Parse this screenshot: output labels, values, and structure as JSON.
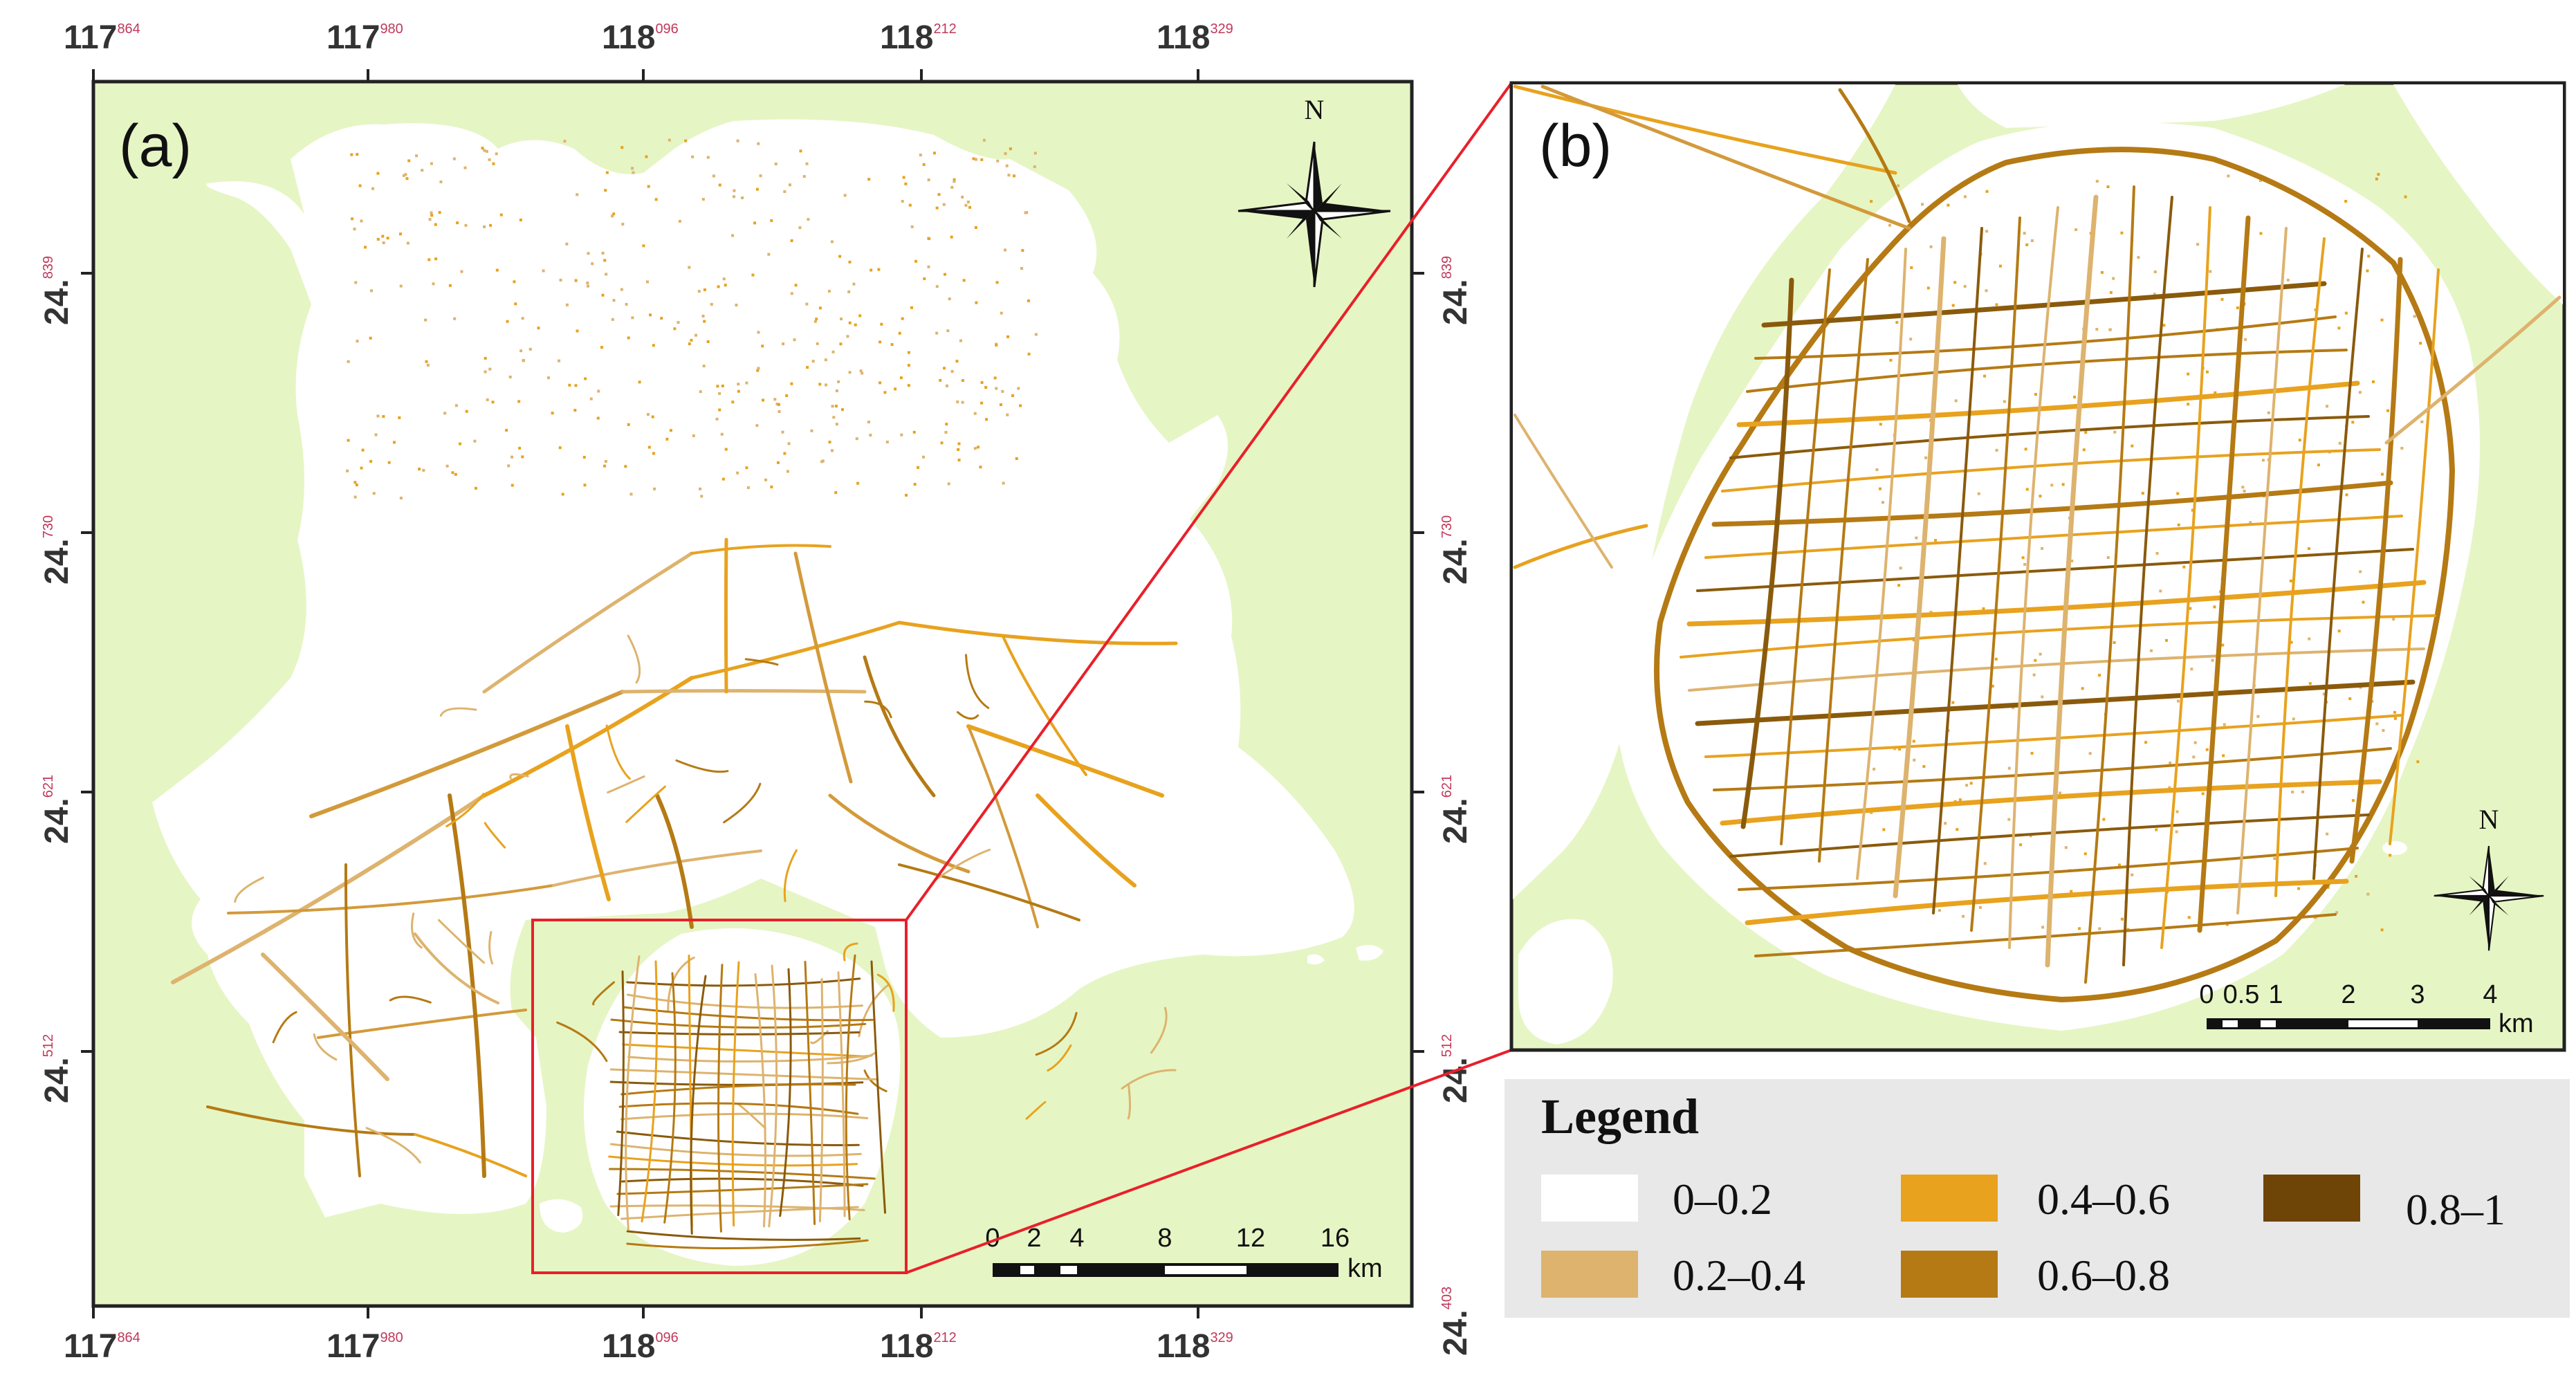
{
  "panels": {
    "a_label": "(a)",
    "b_label": "(b)"
  },
  "coords": {
    "x_labels": [
      {
        "deg": "117",
        "min": "864"
      },
      {
        "deg": "117",
        "min": "980"
      },
      {
        "deg": "118",
        "min": "096"
      },
      {
        "deg": "118",
        "min": "212"
      },
      {
        "deg": "118",
        "min": "329"
      }
    ],
    "y_labels": [
      {
        "deg": "24.",
        "min": "839"
      },
      {
        "deg": "24.",
        "min": "730"
      },
      {
        "deg": "24.",
        "min": "621"
      },
      {
        "deg": "24.",
        "min": "512"
      },
      {
        "deg": "24.",
        "min": "403"
      }
    ]
  },
  "north": {
    "label": "N",
    "icon": "north-arrow-icon"
  },
  "scale_a": {
    "ticks": [
      "0",
      "2",
      "4",
      "8",
      "12",
      "16"
    ],
    "unit": "km"
  },
  "scale_b": {
    "ticks": [
      "0",
      "0.5",
      "1",
      "2",
      "3",
      "4"
    ],
    "unit": "km"
  },
  "legend": {
    "title": "Legend",
    "items": [
      {
        "label": "0–0.2",
        "color": "#ffffff"
      },
      {
        "label": "0.2–0.4",
        "color": "#ddb36e"
      },
      {
        "label": "0.4–0.6",
        "color": "#e8a21e"
      },
      {
        "label": "0.6–0.8",
        "color": "#b57a14"
      },
      {
        "label": "0.8–1",
        "color": "#6e4407"
      }
    ]
  },
  "colors": {
    "background_land": "#e6f5c4",
    "study_area": "#ffffff",
    "zoom_box": "#e8202a"
  }
}
